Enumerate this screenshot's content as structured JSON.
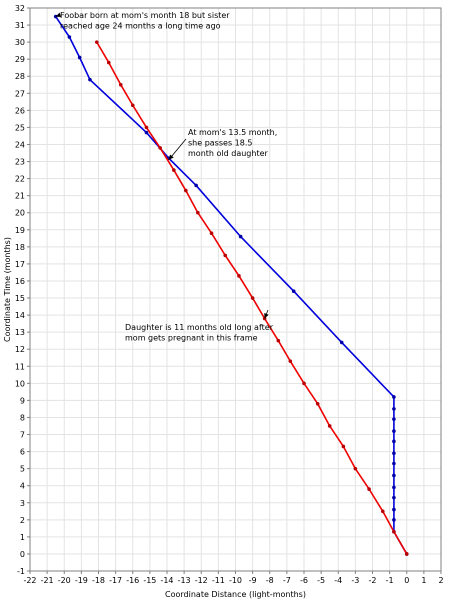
{
  "chart_data": {
    "type": "line",
    "xlabel": "Coordinate Distance (light-months)",
    "ylabel": "Coordinate Time (months)",
    "xlim": [
      -22,
      2
    ],
    "ylim": [
      -1,
      32
    ],
    "x_ticks": [
      -22,
      -21,
      -20,
      -19,
      -18,
      -17,
      -16,
      -15,
      -14,
      -13,
      -12,
      -11,
      -10,
      -9,
      -8,
      -7,
      -6,
      -5,
      -4,
      -3,
      -2,
      -1,
      0,
      1,
      2
    ],
    "y_ticks": [
      -1,
      0,
      1,
      2,
      3,
      4,
      5,
      6,
      7,
      8,
      9,
      10,
      11,
      12,
      13,
      14,
      15,
      16,
      17,
      18,
      19,
      20,
      21,
      22,
      23,
      24,
      25,
      26,
      27,
      28,
      29,
      30,
      31,
      32
    ],
    "grid": true,
    "series": [
      {
        "color": "#0000dd",
        "marker_color": "#0000aa",
        "points": [
          [
            0,
            0
          ],
          [
            -0.75,
            1.3
          ],
          [
            -0.75,
            2.0
          ],
          [
            -0.75,
            2.6
          ],
          [
            -0.75,
            3.3
          ],
          [
            -0.75,
            3.9
          ],
          [
            -0.75,
            4.6
          ],
          [
            -0.75,
            5.3
          ],
          [
            -0.75,
            5.9
          ],
          [
            -0.75,
            6.6
          ],
          [
            -0.75,
            7.2
          ],
          [
            -0.75,
            7.9
          ],
          [
            -0.75,
            8.5
          ],
          [
            -0.75,
            9.2
          ],
          [
            -3.8,
            12.4
          ],
          [
            -6.6,
            15.4
          ],
          [
            -9.7,
            18.6
          ],
          [
            -12.3,
            21.6
          ],
          [
            -13.9,
            23.2
          ],
          [
            -15.2,
            24.7
          ],
          [
            -18.5,
            27.8
          ],
          [
            -19.1,
            29.1
          ],
          [
            -19.7,
            30.3
          ],
          [
            -20.5,
            31.5
          ]
        ]
      },
      {
        "color": "#ee0000",
        "marker_color": "#bb0000",
        "points": [
          [
            0,
            0
          ],
          [
            -0.75,
            1.3
          ],
          [
            -1.4,
            2.5
          ],
          [
            -2.2,
            3.8
          ],
          [
            -3.0,
            5.0
          ],
          [
            -3.7,
            6.3
          ],
          [
            -4.5,
            7.5
          ],
          [
            -5.2,
            8.8
          ],
          [
            -6.0,
            10.0
          ],
          [
            -6.8,
            11.3
          ],
          [
            -7.5,
            12.5
          ],
          [
            -8.3,
            13.8
          ],
          [
            -9.0,
            15.0
          ],
          [
            -9.8,
            16.3
          ],
          [
            -10.6,
            17.5
          ],
          [
            -11.4,
            18.8
          ],
          [
            -12.2,
            20.0
          ],
          [
            -12.9,
            21.3
          ],
          [
            -13.6,
            22.5
          ],
          [
            -14.4,
            23.8
          ],
          [
            -15.2,
            25.0
          ],
          [
            -16.0,
            26.3
          ],
          [
            -16.7,
            27.5
          ],
          [
            -17.4,
            28.8
          ],
          [
            -18.1,
            30.0
          ]
        ]
      }
    ],
    "annotations": [
      {
        "lines": [
          "Foobar born at mom's month 18 but sister",
          "reached age 24 months a long time ago"
        ],
        "target": [
          -20.5,
          31.5
        ]
      },
      {
        "lines": [
          "At mom's 13.5 month,",
          "she passes 18.5",
          "month old daughter"
        ],
        "target": [
          -13.9,
          23.1
        ]
      },
      {
        "lines": [
          "Daughter is 11 months old long after",
          "mom gets pregnant in this frame"
        ],
        "target": [
          -8.3,
          13.8
        ]
      }
    ]
  }
}
